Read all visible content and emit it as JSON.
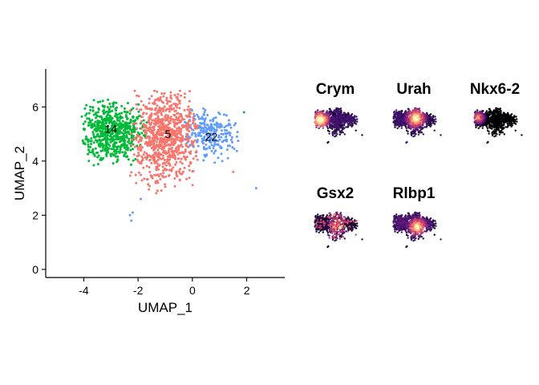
{
  "chart_data": [
    {
      "type": "scatter",
      "title": "",
      "xlabel": "UMAP_1",
      "ylabel": "UMAP_2",
      "xlim": [
        -5.4,
        3.4
      ],
      "ylim": [
        -0.3,
        7.4
      ],
      "xticks": [
        -4,
        -2,
        0,
        2
      ],
      "xtick_labels": [
        "-4",
        "-2",
        "0",
        "2"
      ],
      "yticks": [
        0,
        2,
        4,
        6
      ],
      "ytick_labels": [
        "0",
        "2",
        "4",
        "6"
      ],
      "grid": false,
      "legend": "none",
      "clusters": [
        {
          "label": "14",
          "color": "#00BA38",
          "center": [
            -3.1,
            5.2
          ],
          "label_pos": [
            -3.0,
            5.2
          ]
        },
        {
          "label": "5",
          "color": "#F8766D",
          "center": [
            -1.0,
            4.9
          ],
          "label_pos": [
            -0.9,
            5.0
          ]
        },
        {
          "label": "22",
          "color": "#619CFF",
          "center": [
            0.7,
            5.0
          ],
          "label_pos": [
            0.7,
            4.9
          ]
        }
      ]
    },
    {
      "type": "scatter",
      "panels": [
        {
          "title": "Crym"
        },
        {
          "title": "Urah"
        },
        {
          "title": "Nkx6-2"
        },
        {
          "title": "Gsx2"
        },
        {
          "title": "Rlbp1"
        }
      ],
      "colormap": [
        "#000004",
        "#3B0F70",
        "#8C2981",
        "#DE4968",
        "#FE9F6D",
        "#FCFDBF"
      ]
    }
  ]
}
